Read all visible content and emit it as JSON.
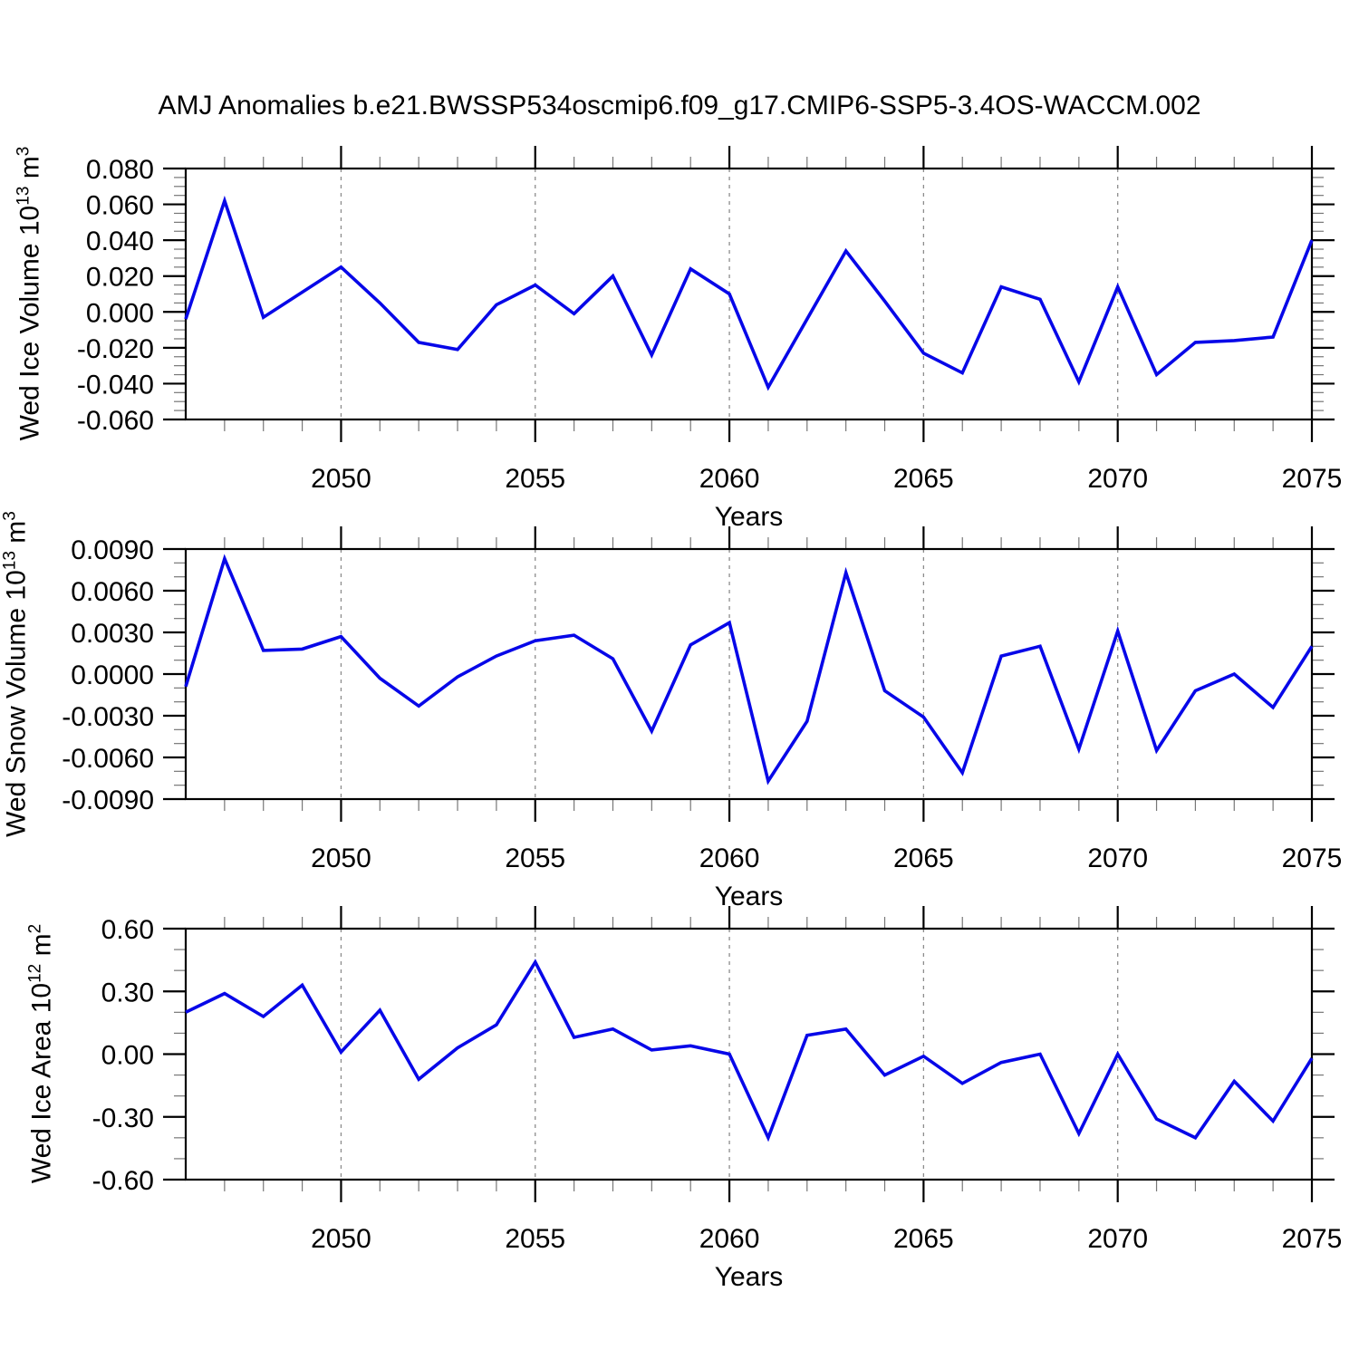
{
  "title": "AMJ Anomalies b.e21.BWSSP534oscmip6.f09_g17.CMIP6-SSP5-3.4OS-WACCM.002",
  "line_color": "#0707e8",
  "grid_color": "#8c8c8c",
  "axis_color": "#000000",
  "minor_tick_color": "#777777",
  "chart_data": [
    {
      "type": "line",
      "name": "Wed Ice Volume",
      "ylabel": {
        "base": "Wed Ice Volume 10",
        "exp": "13",
        "unit": "m",
        "unit_exp": "3"
      },
      "xlabel": "Years",
      "x": [
        2046,
        2047,
        2048,
        2049,
        2050,
        2051,
        2052,
        2053,
        2054,
        2055,
        2056,
        2057,
        2058,
        2059,
        2060,
        2061,
        2062,
        2063,
        2064,
        2065,
        2066,
        2067,
        2068,
        2069,
        2070,
        2071,
        2072,
        2073,
        2074,
        2075
      ],
      "values": [
        -0.004,
        0.062,
        -0.003,
        0.011,
        0.025,
        0.005,
        -0.017,
        -0.021,
        0.004,
        0.015,
        -0.001,
        0.02,
        -0.024,
        0.024,
        0.01,
        -0.042,
        -0.004,
        0.034,
        0.006,
        -0.023,
        -0.034,
        0.014,
        0.007,
        -0.039,
        0.014,
        -0.035,
        -0.017,
        -0.016,
        -0.014,
        0.04
      ],
      "xlim": [
        2046,
        2075
      ],
      "ylim": [
        -0.06,
        0.08
      ],
      "yticks": [
        0.08,
        0.06,
        0.04,
        0.02,
        0.0,
        -0.02,
        -0.04,
        -0.06
      ],
      "ytick_labels": [
        "0.080",
        "0.060",
        "0.040",
        "0.020",
        "0.000",
        "-0.020",
        "-0.040",
        "-0.060"
      ],
      "yminor_step": 0.005,
      "xticks": [
        2050,
        2055,
        2060,
        2065,
        2070,
        2075
      ],
      "xtick_labels": [
        "2050",
        "2055",
        "2060",
        "2065",
        "2070",
        "2075"
      ],
      "xminor_step": 1,
      "grid": "vertical-dashed-at-major-xticks"
    },
    {
      "type": "line",
      "name": "Wed Snow Volume",
      "ylabel": {
        "base": "Wed Snow Volume 10",
        "exp": "13",
        "unit": "m",
        "unit_exp": "3"
      },
      "xlabel": "Years",
      "x": [
        2046,
        2047,
        2048,
        2049,
        2050,
        2051,
        2052,
        2053,
        2054,
        2055,
        2056,
        2057,
        2058,
        2059,
        2060,
        2061,
        2062,
        2063,
        2064,
        2065,
        2066,
        2067,
        2068,
        2069,
        2070,
        2071,
        2072,
        2073,
        2074,
        2075
      ],
      "values": [
        -0.0009,
        0.0083,
        0.0017,
        0.0018,
        0.0027,
        -0.0003,
        -0.0023,
        -0.0002,
        0.0013,
        0.0024,
        0.0028,
        0.0011,
        -0.0041,
        0.0021,
        0.0037,
        -0.0077,
        -0.0034,
        0.0073,
        -0.0012,
        -0.0031,
        -0.0071,
        0.0013,
        0.002,
        -0.0054,
        0.0031,
        -0.0055,
        -0.0012,
        0.0,
        -0.0024,
        0.002
      ],
      "xlim": [
        2046,
        2075
      ],
      "ylim": [
        -0.009,
        0.009
      ],
      "yticks": [
        0.009,
        0.006,
        0.003,
        0.0,
        -0.003,
        -0.006,
        -0.009
      ],
      "ytick_labels": [
        "0.0090",
        "0.0060",
        "0.0030",
        "0.0000",
        "-0.0030",
        "-0.0060",
        "-0.0090"
      ],
      "yminor_step": 0.001,
      "xticks": [
        2050,
        2055,
        2060,
        2065,
        2070,
        2075
      ],
      "xtick_labels": [
        "2050",
        "2055",
        "2060",
        "2065",
        "2070",
        "2075"
      ],
      "xminor_step": 1,
      "grid": "vertical-dashed-at-major-xticks"
    },
    {
      "type": "line",
      "name": "Wed Ice Area",
      "ylabel": {
        "base": "Wed Ice Area 10",
        "exp": "12",
        "unit": "m",
        "unit_exp": "2"
      },
      "xlabel": "Years",
      "x": [
        2046,
        2047,
        2048,
        2049,
        2050,
        2051,
        2052,
        2053,
        2054,
        2055,
        2056,
        2057,
        2058,
        2059,
        2060,
        2061,
        2062,
        2063,
        2064,
        2065,
        2066,
        2067,
        2068,
        2069,
        2070,
        2071,
        2072,
        2073,
        2074,
        2075
      ],
      "values": [
        0.2,
        0.29,
        0.18,
        0.33,
        0.01,
        0.21,
        -0.12,
        0.03,
        0.14,
        0.44,
        0.08,
        0.12,
        0.02,
        0.04,
        0.0,
        -0.4,
        0.09,
        0.12,
        -0.1,
        -0.01,
        -0.14,
        -0.04,
        0.0,
        -0.38,
        0.0,
        -0.31,
        -0.4,
        -0.13,
        -0.32,
        -0.02
      ],
      "xlim": [
        2046,
        2075
      ],
      "ylim": [
        -0.6,
        0.6
      ],
      "yticks": [
        0.6,
        0.3,
        0.0,
        -0.3,
        -0.6
      ],
      "ytick_labels": [
        "0.60",
        "0.30",
        "0.00",
        "-0.30",
        "-0.60"
      ],
      "yminor_step": 0.1,
      "xticks": [
        2050,
        2055,
        2060,
        2065,
        2070,
        2075
      ],
      "xtick_labels": [
        "2050",
        "2055",
        "2060",
        "2065",
        "2070",
        "2075"
      ],
      "xminor_step": 1,
      "grid": "vertical-dashed-at-major-xticks"
    }
  ]
}
